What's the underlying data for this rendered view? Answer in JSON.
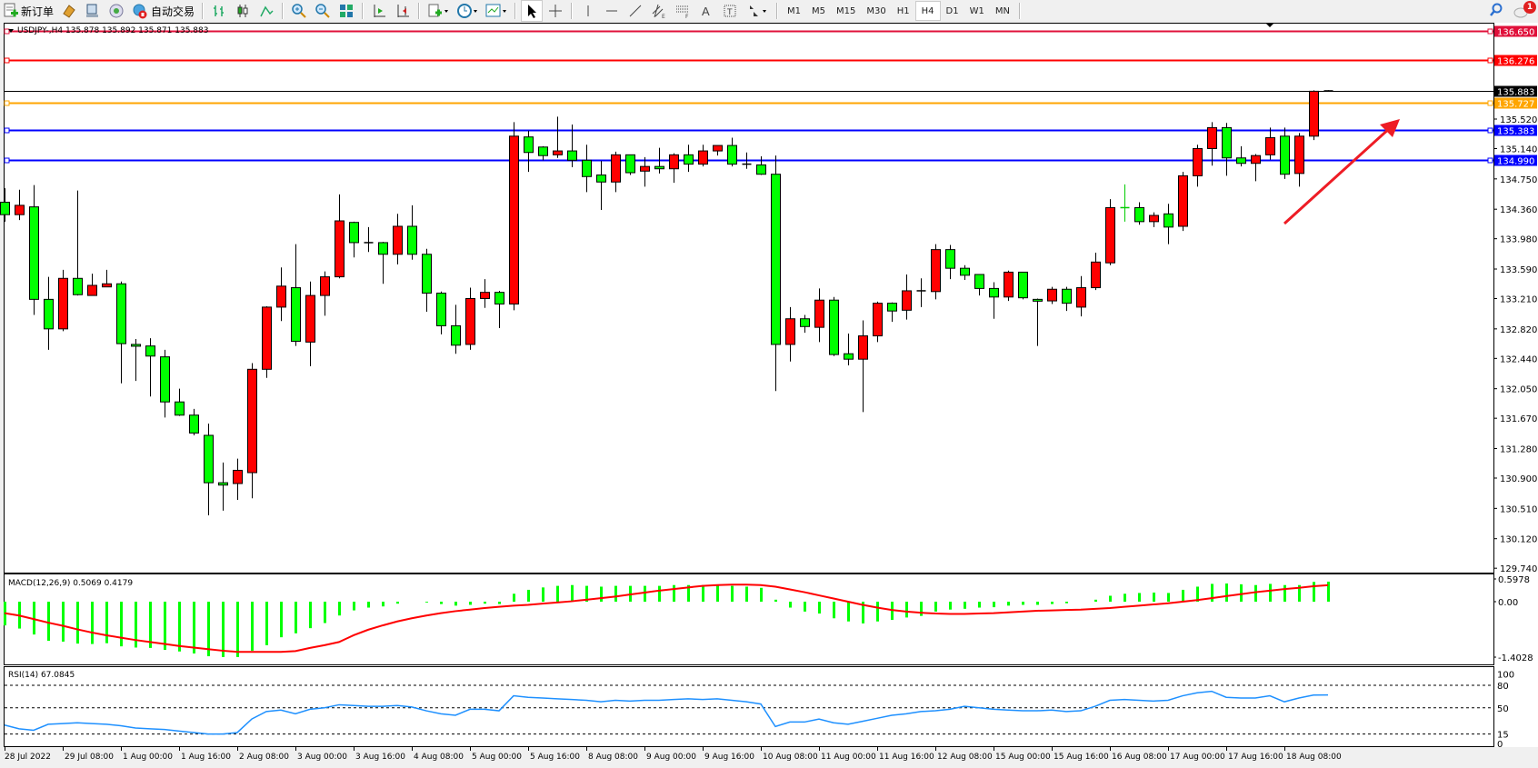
{
  "toolbar": {
    "new_order_label": "新订单",
    "auto_trading_label": "自动交易",
    "timeframes": [
      "M1",
      "M5",
      "M15",
      "M30",
      "H1",
      "H4",
      "D1",
      "W1",
      "MN"
    ],
    "active_timeframe": "H4",
    "notification_count": "1"
  },
  "chart": {
    "header": "USDJPY-,H4  135.878 135.892 135.871 135.883",
    "bid": 135.883,
    "up_color": "#ff0000",
    "down_color": "#00ff00",
    "price_ticks": [
      "135.520",
      "135.140",
      "134.750",
      "134.360",
      "133.980",
      "133.590",
      "133.210",
      "132.820",
      "132.440",
      "132.050",
      "131.670",
      "131.280",
      "130.900",
      "130.510",
      "130.120",
      "129.740"
    ],
    "hlines": [
      {
        "price": 136.65,
        "label": "136.650",
        "color": "#e0103a"
      },
      {
        "price": 136.276,
        "label": "136.276",
        "color": "#ff0000"
      },
      {
        "price": 135.883,
        "label": "135.883",
        "color": "#000000"
      },
      {
        "price": 135.727,
        "label": "135.727",
        "color": "#ffa500"
      },
      {
        "price": 135.383,
        "label": "135.383",
        "color": "#0000ff"
      },
      {
        "price": 134.99,
        "label": "134.990",
        "color": "#0000ff"
      }
    ],
    "arrow_color": "#ee1c25",
    "time_labels": [
      {
        "bar": 0,
        "text": "28 Jul 2022"
      },
      {
        "bar": 4,
        "text": "29 Jul 08:00"
      },
      {
        "bar": 8,
        "text": "1 Aug 00:00"
      },
      {
        "bar": 12,
        "text": "1 Aug 16:00"
      },
      {
        "bar": 16,
        "text": "2 Aug 08:00"
      },
      {
        "bar": 20,
        "text": "3 Aug 00:00"
      },
      {
        "bar": 24,
        "text": "3 Aug 16:00"
      },
      {
        "bar": 28,
        "text": "4 Aug 08:00"
      },
      {
        "bar": 32,
        "text": "5 Aug 00:00"
      },
      {
        "bar": 36,
        "text": "5 Aug 16:00"
      },
      {
        "bar": 40,
        "text": "8 Aug 08:00"
      },
      {
        "bar": 44,
        "text": "9 Aug 00:00"
      },
      {
        "bar": 48,
        "text": "9 Aug 16:00"
      },
      {
        "bar": 52,
        "text": "10 Aug 08:00"
      },
      {
        "bar": 56,
        "text": "11 Aug 00:00"
      },
      {
        "bar": 60,
        "text": "11 Aug 16:00"
      },
      {
        "bar": 64,
        "text": "12 Aug 08:00"
      },
      {
        "bar": 68,
        "text": "15 Aug 00:00"
      },
      {
        "bar": 72,
        "text": "15 Aug 16:00"
      },
      {
        "bar": 76,
        "text": "16 Aug 08:00"
      },
      {
        "bar": 80,
        "text": "17 Aug 00:00"
      },
      {
        "bar": 84,
        "text": "17 Aug 16:00"
      },
      {
        "bar": 88,
        "text": "18 Aug 08:00"
      }
    ]
  },
  "chart_data": {
    "type": "candlestick",
    "symbol": "USDJPY-",
    "timeframe": "H4",
    "ylim": [
      129.74,
      136.65
    ],
    "ohlc": [
      [
        134.45,
        134.63,
        134.2,
        134.29
      ],
      [
        134.29,
        134.61,
        134.22,
        134.41
      ],
      [
        134.39,
        134.67,
        133.0,
        133.2
      ],
      [
        133.2,
        133.49,
        132.55,
        132.82
      ],
      [
        132.82,
        133.58,
        132.79,
        133.47
      ],
      [
        133.47,
        134.6,
        133.25,
        133.26
      ],
      [
        133.25,
        133.53,
        133.25,
        133.38
      ],
      [
        133.36,
        133.58,
        133.36,
        133.4
      ],
      [
        133.4,
        133.43,
        132.12,
        132.63
      ],
      [
        132.62,
        132.69,
        132.15,
        132.6
      ],
      [
        132.6,
        132.7,
        131.95,
        132.47
      ],
      [
        132.46,
        132.55,
        131.68,
        131.88
      ],
      [
        131.88,
        132.05,
        131.7,
        131.71
      ],
      [
        131.71,
        131.79,
        131.45,
        131.48
      ],
      [
        131.45,
        131.6,
        130.42,
        130.84
      ],
      [
        130.84,
        131.1,
        130.48,
        130.81
      ],
      [
        130.83,
        131.15,
        130.62,
        131.0
      ],
      [
        130.97,
        132.38,
        130.64,
        132.3
      ],
      [
        132.3,
        133.11,
        132.19,
        133.1
      ],
      [
        133.1,
        133.61,
        132.92,
        133.37
      ],
      [
        133.35,
        133.91,
        132.6,
        132.66
      ],
      [
        132.65,
        133.43,
        132.34,
        133.25
      ],
      [
        133.25,
        133.56,
        132.99,
        133.49
      ],
      [
        133.49,
        134.55,
        133.47,
        134.21
      ],
      [
        134.19,
        134.2,
        133.74,
        133.93
      ],
      [
        133.93,
        134.13,
        133.81,
        133.93
      ],
      [
        133.93,
        133.94,
        133.4,
        133.78
      ],
      [
        133.78,
        134.3,
        133.65,
        134.14
      ],
      [
        134.14,
        134.41,
        133.71,
        133.78
      ],
      [
        133.78,
        133.85,
        133.04,
        133.28
      ],
      [
        133.28,
        133.3,
        132.75,
        132.86
      ],
      [
        132.86,
        133.13,
        132.5,
        132.61
      ],
      [
        132.62,
        133.35,
        132.55,
        133.21
      ],
      [
        133.21,
        133.46,
        133.09,
        133.29
      ],
      [
        133.29,
        133.31,
        132.83,
        133.14
      ],
      [
        133.14,
        135.48,
        133.06,
        135.3
      ],
      [
        135.29,
        135.37,
        134.84,
        135.09
      ],
      [
        135.16,
        135.17,
        134.99,
        135.05
      ],
      [
        135.06,
        135.55,
        135.02,
        135.11
      ],
      [
        135.11,
        135.45,
        134.9,
        134.99
      ],
      [
        134.99,
        135.19,
        134.58,
        134.78
      ],
      [
        134.8,
        134.98,
        134.35,
        134.71
      ],
      [
        134.71,
        135.1,
        134.58,
        135.06
      ],
      [
        135.06,
        135.06,
        134.8,
        134.83
      ],
      [
        134.85,
        135.03,
        134.65,
        134.91
      ],
      [
        134.91,
        135.15,
        134.82,
        134.88
      ],
      [
        134.88,
        135.08,
        134.7,
        135.06
      ],
      [
        135.06,
        135.19,
        134.84,
        134.94
      ],
      [
        134.94,
        135.19,
        134.91,
        135.11
      ],
      [
        135.11,
        135.18,
        135.05,
        135.18
      ],
      [
        135.18,
        135.28,
        134.91,
        134.94
      ],
      [
        134.94,
        135.09,
        134.88,
        134.93
      ],
      [
        134.93,
        135.04,
        134.8,
        134.81
      ],
      [
        134.81,
        135.05,
        132.02,
        132.62
      ],
      [
        132.62,
        133.1,
        132.4,
        132.95
      ],
      [
        132.95,
        133.0,
        132.77,
        132.85
      ],
      [
        132.84,
        133.34,
        132.65,
        133.19
      ],
      [
        133.19,
        133.23,
        132.47,
        132.49
      ],
      [
        132.5,
        132.76,
        132.35,
        132.43
      ],
      [
        132.43,
        132.93,
        131.75,
        132.73
      ],
      [
        132.73,
        133.17,
        132.65,
        133.15
      ],
      [
        133.15,
        133.16,
        132.91,
        133.05
      ],
      [
        133.06,
        133.52,
        132.94,
        133.31
      ],
      [
        133.31,
        133.47,
        133.1,
        133.31
      ],
      [
        133.3,
        133.91,
        133.2,
        133.84
      ],
      [
        133.84,
        133.9,
        133.46,
        133.6
      ],
      [
        133.6,
        133.64,
        133.45,
        133.51
      ],
      [
        133.52,
        133.52,
        133.25,
        133.34
      ],
      [
        133.34,
        133.42,
        132.95,
        133.23
      ],
      [
        133.23,
        133.57,
        133.18,
        133.55
      ],
      [
        133.55,
        133.55,
        133.2,
        133.22
      ],
      [
        133.2,
        133.21,
        132.6,
        133.18
      ],
      [
        133.18,
        133.36,
        133.14,
        133.33
      ],
      [
        133.33,
        133.36,
        133.05,
        133.15
      ],
      [
        133.1,
        133.5,
        132.98,
        133.35
      ],
      [
        133.35,
        133.8,
        133.32,
        133.68
      ],
      [
        133.67,
        134.49,
        133.64,
        134.38
      ],
      [
        134.38,
        134.68,
        134.2,
        134.37
      ],
      [
        134.38,
        134.45,
        134.16,
        134.2
      ],
      [
        134.2,
        134.32,
        134.13,
        134.28
      ],
      [
        134.3,
        134.43,
        133.91,
        134.13
      ],
      [
        134.14,
        134.84,
        134.08,
        134.79
      ],
      [
        134.79,
        135.19,
        134.65,
        135.14
      ],
      [
        135.14,
        135.48,
        134.92,
        135.41
      ],
      [
        135.41,
        135.47,
        134.79,
        135.02
      ],
      [
        135.02,
        135.17,
        134.91,
        134.95
      ],
      [
        134.95,
        135.07,
        134.72,
        135.05
      ],
      [
        135.06,
        135.41,
        135.0,
        135.28
      ],
      [
        135.3,
        135.41,
        134.75,
        134.81
      ],
      [
        134.82,
        135.34,
        134.65,
        135.3
      ],
      [
        135.3,
        135.89,
        135.25,
        135.878
      ],
      [
        135.878,
        135.892,
        135.871,
        135.883
      ]
    ],
    "macd": {
      "label": "MACD(12,26,9) 0.5069 0.4179",
      "ticks": [
        "0.5978",
        "0.00",
        "-1.4028"
      ],
      "ylim": [
        -1.4028,
        0.5978
      ],
      "hist_color": "#00ff00",
      "signal_color": "#ff0000",
      "histogram": [
        -0.6,
        -0.68,
        -0.83,
        -0.99,
        -1.01,
        -1.06,
        -1.07,
        -1.05,
        -1.13,
        -1.16,
        -1.17,
        -1.22,
        -1.26,
        -1.31,
        -1.38,
        -1.4,
        -1.4,
        -1.24,
        -1.1,
        -0.9,
        -0.8,
        -0.67,
        -0.54,
        -0.35,
        -0.22,
        -0.15,
        -0.12,
        -0.05,
        0.0,
        -0.02,
        -0.06,
        -0.1,
        -0.08,
        -0.05,
        -0.06,
        0.2,
        0.3,
        0.36,
        0.4,
        0.42,
        0.4,
        0.38,
        0.4,
        0.4,
        0.4,
        0.4,
        0.42,
        0.42,
        0.42,
        0.42,
        0.4,
        0.38,
        0.35,
        0.05,
        -0.15,
        -0.25,
        -0.3,
        -0.42,
        -0.5,
        -0.55,
        -0.5,
        -0.46,
        -0.4,
        -0.36,
        -0.25,
        -0.2,
        -0.18,
        -0.15,
        -0.14,
        -0.1,
        -0.08,
        -0.08,
        -0.06,
        -0.04,
        0.0,
        0.05,
        0.15,
        0.2,
        0.22,
        0.23,
        0.22,
        0.3,
        0.38,
        0.45,
        0.46,
        0.44,
        0.42,
        0.45,
        0.42,
        0.42,
        0.5,
        0.5069
      ],
      "signal": [
        -0.29,
        -0.35,
        -0.44,
        -0.53,
        -0.61,
        -0.7,
        -0.78,
        -0.85,
        -0.91,
        -0.97,
        -1.02,
        -1.07,
        -1.12,
        -1.16,
        -1.2,
        -1.24,
        -1.27,
        -1.27,
        -1.27,
        -1.27,
        -1.25,
        -1.17,
        -1.1,
        -1.02,
        -0.85,
        -0.71,
        -0.6,
        -0.5,
        -0.42,
        -0.35,
        -0.29,
        -0.24,
        -0.2,
        -0.16,
        -0.13,
        -0.1,
        -0.08,
        -0.05,
        -0.02,
        0.01,
        0.05,
        0.09,
        0.13,
        0.18,
        0.23,
        0.28,
        0.32,
        0.36,
        0.4,
        0.42,
        0.43,
        0.43,
        0.42,
        0.38,
        0.31,
        0.24,
        0.16,
        0.08,
        0.0,
        -0.08,
        -0.15,
        -0.21,
        -0.25,
        -0.28,
        -0.3,
        -0.31,
        -0.31,
        -0.3,
        -0.29,
        -0.27,
        -0.25,
        -0.23,
        -0.22,
        -0.21,
        -0.2,
        -0.18,
        -0.16,
        -0.13,
        -0.1,
        -0.07,
        -0.04,
        0.0,
        0.04,
        0.09,
        0.14,
        0.19,
        0.24,
        0.28,
        0.32,
        0.35,
        0.39,
        0.4179
      ]
    },
    "rsi": {
      "label": "RSI(14) 67.0845",
      "ticks": [
        "100",
        "80",
        "50",
        "15",
        "0"
      ],
      "levels": [
        80,
        50,
        15
      ],
      "ylim": [
        0,
        100
      ],
      "color": "#1e90ff",
      "values": [
        27,
        22,
        20,
        28,
        29,
        30,
        29,
        28,
        26,
        23,
        22,
        21,
        19,
        17,
        15,
        15,
        17,
        35,
        45,
        47,
        42,
        48,
        50,
        54,
        53,
        52,
        52,
        53,
        51,
        46,
        42,
        40,
        48,
        48,
        46,
        66,
        64,
        63,
        62,
        61,
        60,
        58,
        60,
        59,
        60,
        60,
        61,
        62,
        61,
        62,
        60,
        58,
        55,
        25,
        31,
        31,
        35,
        30,
        28,
        32,
        36,
        40,
        42,
        45,
        46,
        48,
        52,
        50,
        48,
        47,
        46,
        46,
        47,
        45,
        46,
        52,
        60,
        61,
        60,
        59,
        60,
        66,
        70,
        72,
        64,
        63,
        63,
        66,
        58,
        63,
        67,
        67.0845
      ]
    }
  }
}
